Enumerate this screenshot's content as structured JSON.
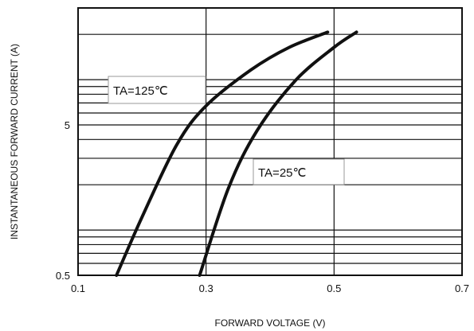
{
  "chart_data": {
    "type": "line",
    "xlabel": "FORWARD VOLTAGE (V)",
    "ylabel": "INSTANTANEOUS FORWARD CURRENT (A)",
    "xlim": [
      0.1,
      0.7
    ],
    "ylim": [
      0.5,
      50
    ],
    "y_scale": "log",
    "grid": true,
    "x_ticks": [
      {
        "value": 0.1,
        "label": "0.1"
      },
      {
        "value": 0.3,
        "label": "0.3"
      },
      {
        "value": 0.5,
        "label": "0.5"
      },
      {
        "value": 0.7,
        "label": "0.7"
      }
    ],
    "y_ticks": [
      {
        "value": 0.5,
        "label": "0.5"
      },
      {
        "value": 5,
        "label": "5"
      }
    ],
    "series": [
      {
        "name": "TA=125℃",
        "color": "#111111",
        "points": [
          {
            "x": 0.16,
            "y": 0.5
          },
          {
            "x": 0.2,
            "y": 1.22
          },
          {
            "x": 0.254,
            "y": 3.68
          },
          {
            "x": 0.3,
            "y": 6.7
          },
          {
            "x": 0.37,
            "y": 11.6
          },
          {
            "x": 0.43,
            "y": 16.4
          },
          {
            "x": 0.49,
            "y": 20.7
          }
        ]
      },
      {
        "name": "TA=25℃",
        "color": "#111111",
        "points": [
          {
            "x": 0.29,
            "y": 0.5
          },
          {
            "x": 0.335,
            "y": 1.9
          },
          {
            "x": 0.38,
            "y": 4.6
          },
          {
            "x": 0.44,
            "y": 9.9
          },
          {
            "x": 0.5,
            "y": 16.4
          },
          {
            "x": 0.535,
            "y": 20.7
          }
        ]
      }
    ]
  }
}
